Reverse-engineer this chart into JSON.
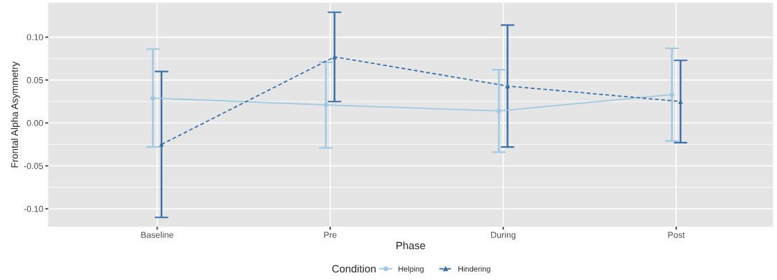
{
  "chart_data": {
    "type": "line",
    "xlabel": "Phase",
    "ylabel": "Frontal Alpha Asymmetry",
    "legend_title": "Condition",
    "categories": [
      "Baseline",
      "Pre",
      "During",
      "Post"
    ],
    "series": [
      {
        "name": "Helping",
        "color": "#9ecae1",
        "values": [
          0.029,
          0.021,
          0.014,
          0.033
        ],
        "errors": [
          0.057,
          0.05,
          0.048,
          0.054
        ],
        "marker": "circle",
        "line_style": "solid"
      },
      {
        "name": "Hindering",
        "color": "#3a70a8",
        "values": [
          -0.025,
          0.077,
          0.043,
          0.025
        ],
        "errors": [
          0.085,
          0.052,
          0.071,
          0.048
        ],
        "marker": "triangle",
        "line_style": "dashed"
      }
    ],
    "ylim": [
      -0.121,
      0.14
    ],
    "yticks": [
      {
        "value": -0.1,
        "label": "-0.10"
      },
      {
        "value": -0.05,
        "label": "-0.05"
      },
      {
        "value": 0,
        "label": "0.00"
      },
      {
        "value": 0.05,
        "label": "0.05"
      },
      {
        "value": 0.1,
        "label": "0.10"
      }
    ],
    "grid": true,
    "legend": "bottom"
  }
}
